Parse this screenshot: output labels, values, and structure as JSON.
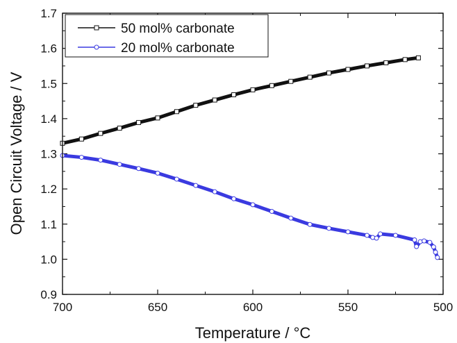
{
  "chart_data": {
    "type": "line",
    "xlabel": "Temperature / °C",
    "ylabel": "Open Circuit Voltage / V",
    "xlim": [
      700,
      500
    ],
    "ylim": [
      0.9,
      1.7
    ],
    "x_ticks": [
      "700",
      "650",
      "600",
      "550",
      "500"
    ],
    "y_ticks": [
      "0.9",
      "1.0",
      "1.1",
      "1.2",
      "1.3",
      "1.4",
      "1.5",
      "1.6",
      "1.7"
    ],
    "grid": false,
    "legend_position": "top-left",
    "series": [
      {
        "name": "50 mol% carbonate",
        "color": "#111111",
        "marker": "square-open",
        "x": [
          700,
          690,
          680,
          670,
          660,
          650,
          640,
          630,
          620,
          610,
          600,
          590,
          580,
          570,
          560,
          550,
          540,
          530,
          520,
          513
        ],
        "y": [
          1.33,
          1.342,
          1.358,
          1.373,
          1.389,
          1.402,
          1.42,
          1.438,
          1.453,
          1.468,
          1.482,
          1.494,
          1.506,
          1.518,
          1.53,
          1.54,
          1.55,
          1.559,
          1.568,
          1.573
        ]
      },
      {
        "name": "20 mol% carbonate",
        "color": "#3a3ae0",
        "marker": "circle-open",
        "x": [
          700,
          690,
          680,
          670,
          660,
          650,
          640,
          630,
          620,
          610,
          600,
          590,
          580,
          570,
          560,
          550,
          540,
          537,
          535,
          533,
          525,
          515,
          514,
          512,
          510,
          507,
          505,
          504,
          503
        ],
        "y": [
          1.295,
          1.29,
          1.282,
          1.27,
          1.258,
          1.245,
          1.228,
          1.21,
          1.192,
          1.172,
          1.155,
          1.136,
          1.117,
          1.099,
          1.088,
          1.078,
          1.068,
          1.062,
          1.06,
          1.072,
          1.068,
          1.055,
          1.036,
          1.05,
          1.052,
          1.048,
          1.035,
          1.02,
          1.005
        ]
      }
    ]
  }
}
